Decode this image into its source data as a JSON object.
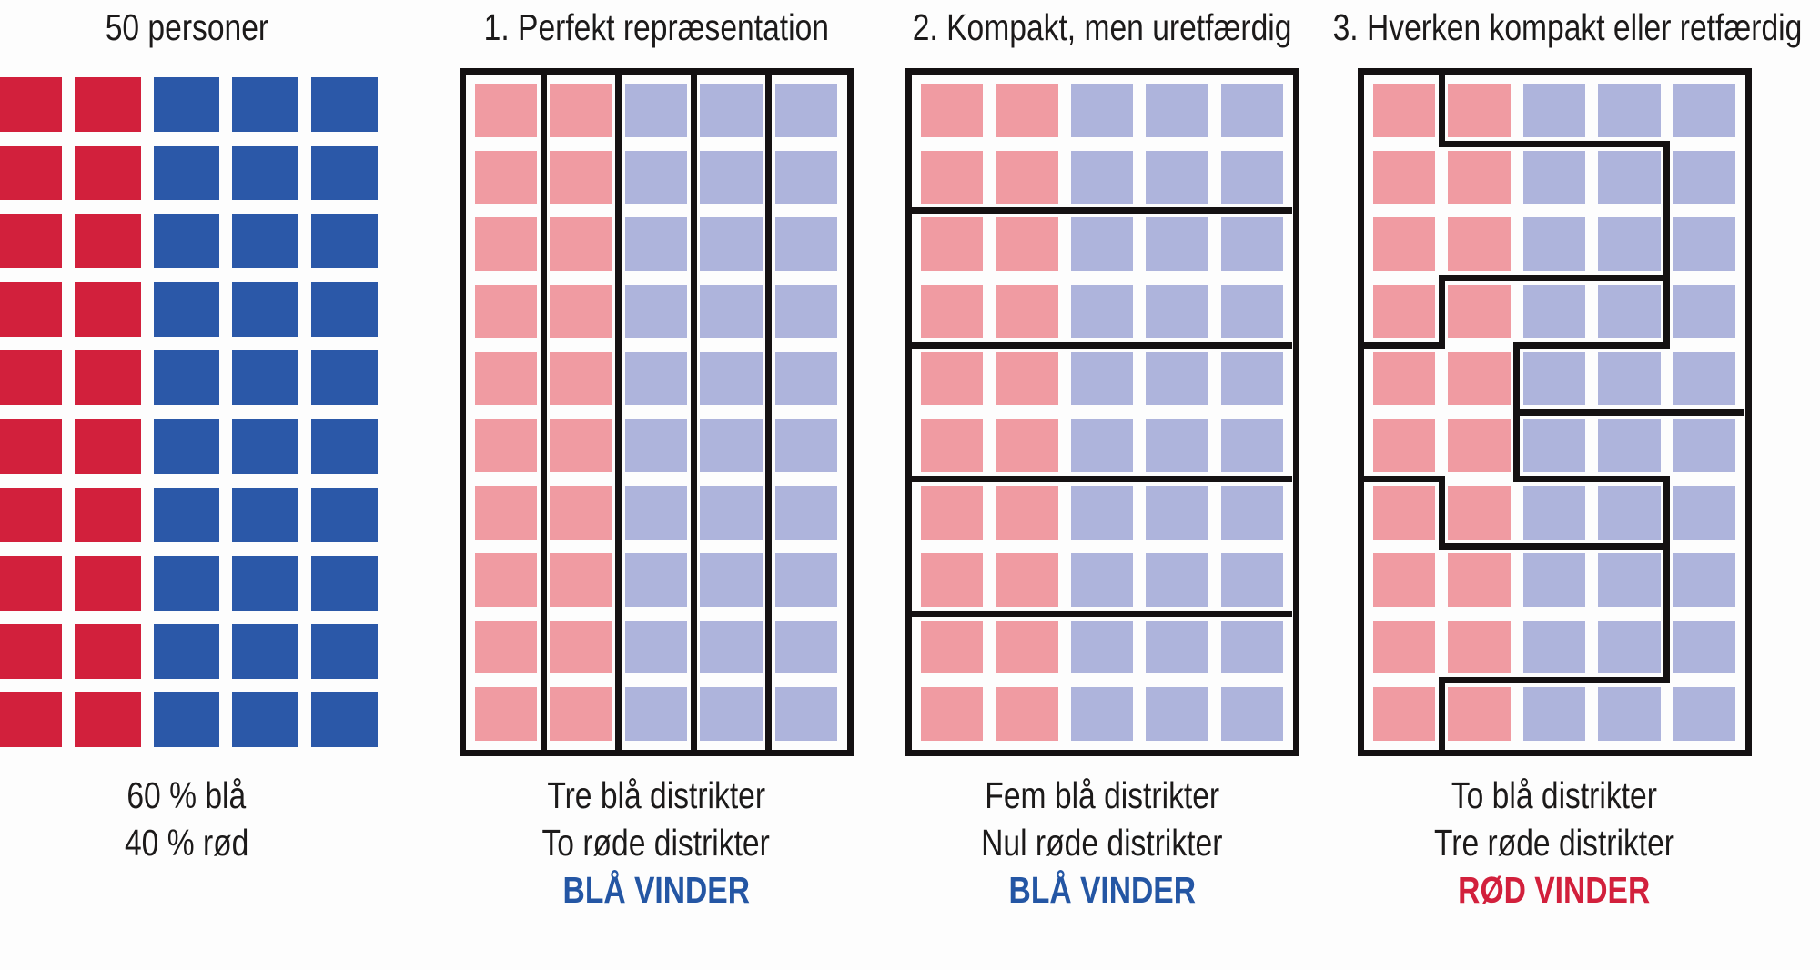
{
  "colors": {
    "red": "#d2203c",
    "blue": "#2b58a8",
    "red_light": "#f09ba2",
    "blue_light": "#aeb4dc",
    "boundary": "#141112",
    "text": "#1c1a1a",
    "background": "#fdfdfd",
    "verdict_blue": "#2456a4",
    "verdict_red": "#d2203c"
  },
  "grid": {
    "rows": 10,
    "cols": 5,
    "column_party": [
      "red",
      "red",
      "blue",
      "blue",
      "blue"
    ]
  },
  "panels": [
    {
      "id": "population",
      "title": "50 personer",
      "palette": "strong",
      "bordered": false,
      "captions": [
        "60 % blå",
        "40 % rød"
      ]
    },
    {
      "id": "perfect-representation",
      "title": "1. Perfekt repræsentation",
      "palette": "light",
      "bordered": true,
      "captions": [
        "Tre blå distrikter",
        "To røde distrikter"
      ],
      "verdict": {
        "text": "BLÅ VINDER",
        "winner": "blue"
      },
      "districts": [
        [
          1,
          2,
          3,
          4,
          5
        ],
        [
          1,
          2,
          3,
          4,
          5
        ],
        [
          1,
          2,
          3,
          4,
          5
        ],
        [
          1,
          2,
          3,
          4,
          5
        ],
        [
          1,
          2,
          3,
          4,
          5
        ],
        [
          1,
          2,
          3,
          4,
          5
        ],
        [
          1,
          2,
          3,
          4,
          5
        ],
        [
          1,
          2,
          3,
          4,
          5
        ],
        [
          1,
          2,
          3,
          4,
          5
        ],
        [
          1,
          2,
          3,
          4,
          5
        ]
      ]
    },
    {
      "id": "compact-unfair",
      "title": "2. Kompakt, men uretfærdig",
      "palette": "light",
      "bordered": true,
      "captions": [
        "Fem blå distrikter",
        "Nul røde distrikter"
      ],
      "verdict": {
        "text": "BLÅ VINDER",
        "winner": "blue"
      },
      "districts": [
        [
          1,
          1,
          1,
          1,
          1
        ],
        [
          1,
          1,
          1,
          1,
          1
        ],
        [
          2,
          2,
          2,
          2,
          2
        ],
        [
          2,
          2,
          2,
          2,
          2
        ],
        [
          3,
          3,
          3,
          3,
          3
        ],
        [
          3,
          3,
          3,
          3,
          3
        ],
        [
          4,
          4,
          4,
          4,
          4
        ],
        [
          4,
          4,
          4,
          4,
          4
        ],
        [
          5,
          5,
          5,
          5,
          5
        ],
        [
          5,
          5,
          5,
          5,
          5
        ]
      ]
    },
    {
      "id": "gerrymandered",
      "title": "3. Hverken kompakt eller retfærdig",
      "palette": "light",
      "bordered": true,
      "captions": [
        "To blå distrikter",
        "Tre røde distrikter"
      ],
      "verdict": {
        "text": "RØD VINDER",
        "winner": "red"
      },
      "districts": [
        [
          1,
          2,
          2,
          2,
          2
        ],
        [
          1,
          1,
          1,
          1,
          2
        ],
        [
          1,
          1,
          1,
          1,
          2
        ],
        [
          1,
          3,
          3,
          3,
          2
        ],
        [
          3,
          3,
          2,
          2,
          2
        ],
        [
          3,
          3,
          5,
          5,
          5
        ],
        [
          4,
          3,
          3,
          3,
          5
        ],
        [
          4,
          4,
          4,
          4,
          5
        ],
        [
          4,
          4,
          4,
          4,
          5
        ],
        [
          4,
          5,
          5,
          5,
          5
        ]
      ]
    }
  ]
}
